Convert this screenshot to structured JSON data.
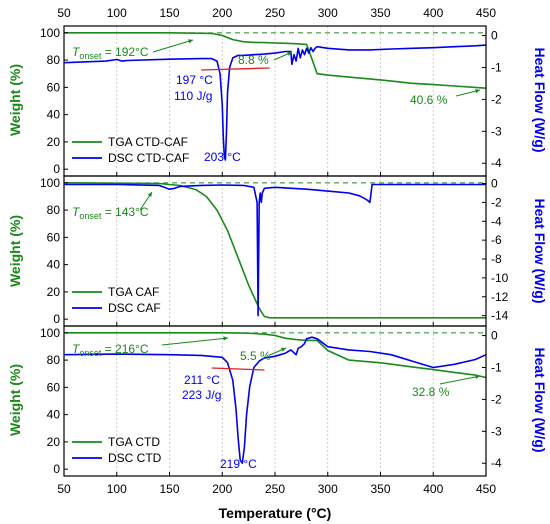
{
  "colors": {
    "tga": "#1a8a1a",
    "dsc": "#0000ee",
    "onset": "#e02020",
    "frame": "#000000",
    "grid": "#bbbbbb"
  },
  "axis_titles": {
    "x": "Temperature (°C)",
    "y_left": "Weight (%)",
    "y_right": "Heat Flow (W/g)"
  },
  "x_ticks": [
    "50",
    "100",
    "150",
    "200",
    "250",
    "300",
    "350",
    "400",
    "450"
  ],
  "chart_data": [
    {
      "type": "line",
      "xlim": [
        50,
        450
      ],
      "ylim": [
        -5,
        105
      ],
      "y2lim": [
        -4.4,
        0.3
      ],
      "y_ticks": [
        0,
        20,
        40,
        60,
        80,
        100
      ],
      "y2_ticks": [
        0,
        -1,
        -2,
        -3,
        -4
      ],
      "grid": true,
      "legend": "bottom-left",
      "series": [
        {
          "name": "TGA CTD-CAF",
          "axis": "left",
          "x": [
            50,
            150,
            190,
            200,
            210,
            220,
            230,
            240,
            250,
            260,
            270,
            280,
            290,
            300,
            320,
            350,
            380,
            400,
            420,
            440,
            450
          ],
          "y": [
            100,
            100,
            99.6,
            98,
            95,
            93.5,
            93,
            92.8,
            92.5,
            92.3,
            92,
            91.5,
            70,
            69,
            67.5,
            65.5,
            63,
            62,
            61,
            60,
            59.4
          ]
        },
        {
          "name": "DSC CTD-CAF",
          "axis": "right",
          "x": [
            50,
            90,
            100,
            105,
            110,
            150,
            180,
            190,
            195,
            198,
            200,
            201,
            202,
            203,
            204,
            205,
            207,
            210,
            215,
            220,
            230,
            240,
            250,
            260,
            265,
            266,
            268,
            270,
            272,
            274,
            276,
            278,
            280,
            282,
            284,
            286,
            288,
            290,
            300,
            320,
            340,
            360,
            380,
            400,
            420,
            440,
            450
          ],
          "y": [
            -0.85,
            -0.8,
            -0.75,
            -0.8,
            -0.78,
            -0.74,
            -0.72,
            -0.72,
            -0.8,
            -1.2,
            -2.2,
            -3.2,
            -3.8,
            -3.9,
            -3.0,
            -1.8,
            -1.0,
            -0.7,
            -0.62,
            -0.62,
            -0.6,
            -0.58,
            -0.55,
            -0.5,
            -0.5,
            -0.9,
            -0.6,
            -0.8,
            -0.4,
            -0.7,
            -0.45,
            -0.6,
            -0.4,
            -0.55,
            -0.38,
            -0.5,
            -0.4,
            -0.35,
            -0.4,
            -0.45,
            -0.45,
            -0.42,
            -0.4,
            -0.38,
            -0.35,
            -0.32,
            -0.3
          ]
        }
      ],
      "annotations": [
        "192°C",
        "8.8 %",
        "197 °C",
        "110 J/g",
        "203 °C",
        "40.6 %"
      ]
    },
    {
      "type": "line",
      "xlim": [
        50,
        450
      ],
      "ylim": [
        -5,
        105
      ],
      "y2lim": [
        -15.1,
        0.8
      ],
      "y_ticks": [
        0,
        20,
        40,
        60,
        80,
        100
      ],
      "y2_ticks": [
        0,
        -2,
        -4,
        -6,
        -8,
        -10,
        -12,
        -14
      ],
      "grid": true,
      "legend": "bottom-left",
      "series": [
        {
          "name": "TGA CAF",
          "axis": "left",
          "x": [
            50,
            140,
            160,
            175,
            185,
            195,
            205,
            215,
            225,
            235,
            240,
            245,
            250,
            300,
            350,
            400,
            450
          ],
          "y": [
            100,
            99.5,
            98,
            95,
            90,
            80,
            65,
            45,
            25,
            8,
            2,
            1,
            1,
            1,
            1,
            1,
            1
          ],
          "color": "tga"
        },
        {
          "name": "DSC CAF",
          "axis": "right",
          "x": [
            50,
            100,
            140,
            145,
            150,
            155,
            160,
            180,
            200,
            220,
            230,
            233,
            234,
            235,
            236,
            237,
            238,
            240,
            250,
            280,
            300,
            320,
            330,
            335,
            338,
            340,
            342,
            345,
            350,
            400,
            450
          ],
          "y": [
            -0.1,
            -0.1,
            -0.2,
            -0.4,
            -0.6,
            -0.5,
            -0.3,
            -0.2,
            -0.15,
            -0.2,
            -0.4,
            -2,
            -14,
            -2,
            -1,
            -2,
            -1,
            -0.5,
            -0.4,
            -0.6,
            -0.8,
            -1.0,
            -1.3,
            -1.6,
            -1.8,
            -2,
            -0.1,
            -0.1,
            -0.1,
            -0.1,
            -0.1
          ]
        }
      ],
      "annotations": [
        "143°C"
      ]
    },
    {
      "type": "line",
      "xlim": [
        50,
        450
      ],
      "ylim": [
        -5,
        105
      ],
      "y2lim": [
        -4.4,
        0.3
      ],
      "y_ticks": [
        0,
        20,
        40,
        60,
        80,
        100
      ],
      "y2_ticks": [
        0,
        -1,
        -2,
        -3,
        -4
      ],
      "grid": true,
      "legend": "bottom-left",
      "series": [
        {
          "name": "TGA CTD",
          "axis": "left",
          "x": [
            50,
            200,
            220,
            230,
            240,
            250,
            260,
            270,
            280,
            290,
            300,
            320,
            350,
            380,
            400,
            420,
            440,
            450
          ],
          "y": [
            100,
            100,
            99.8,
            99.5,
            99,
            98,
            96,
            95,
            94.5,
            94.3,
            87,
            80,
            78,
            75,
            73,
            71,
            69,
            67.2
          ]
        },
        {
          "name": "DSC CTD",
          "axis": "right",
          "x": [
            50,
            100,
            150,
            180,
            200,
            205,
            210,
            213,
            215,
            217,
            219,
            221,
            223,
            226,
            230,
            235,
            240,
            250,
            260,
            265,
            270,
            272,
            275,
            278,
            280,
            285,
            290,
            300,
            320,
            340,
            360,
            380,
            400,
            420,
            440,
            450
          ],
          "y": [
            -0.6,
            -0.58,
            -0.6,
            -0.62,
            -0.68,
            -0.85,
            -1.4,
            -2.3,
            -3.2,
            -3.9,
            -4.0,
            -3.5,
            -2.5,
            -1.6,
            -1.0,
            -0.8,
            -0.7,
            -0.65,
            -0.55,
            -0.45,
            -0.6,
            -0.4,
            -0.35,
            -0.25,
            -0.1,
            -0.05,
            -0.1,
            -0.35,
            -0.45,
            -0.5,
            -0.6,
            -0.8,
            -1.0,
            -0.9,
            -0.75,
            -0.6
          ]
        }
      ],
      "annotations": [
        "216°C",
        "5.5 %",
        "211 °C",
        "223 J/g",
        "219 °C",
        "32.8 %"
      ]
    }
  ]
}
